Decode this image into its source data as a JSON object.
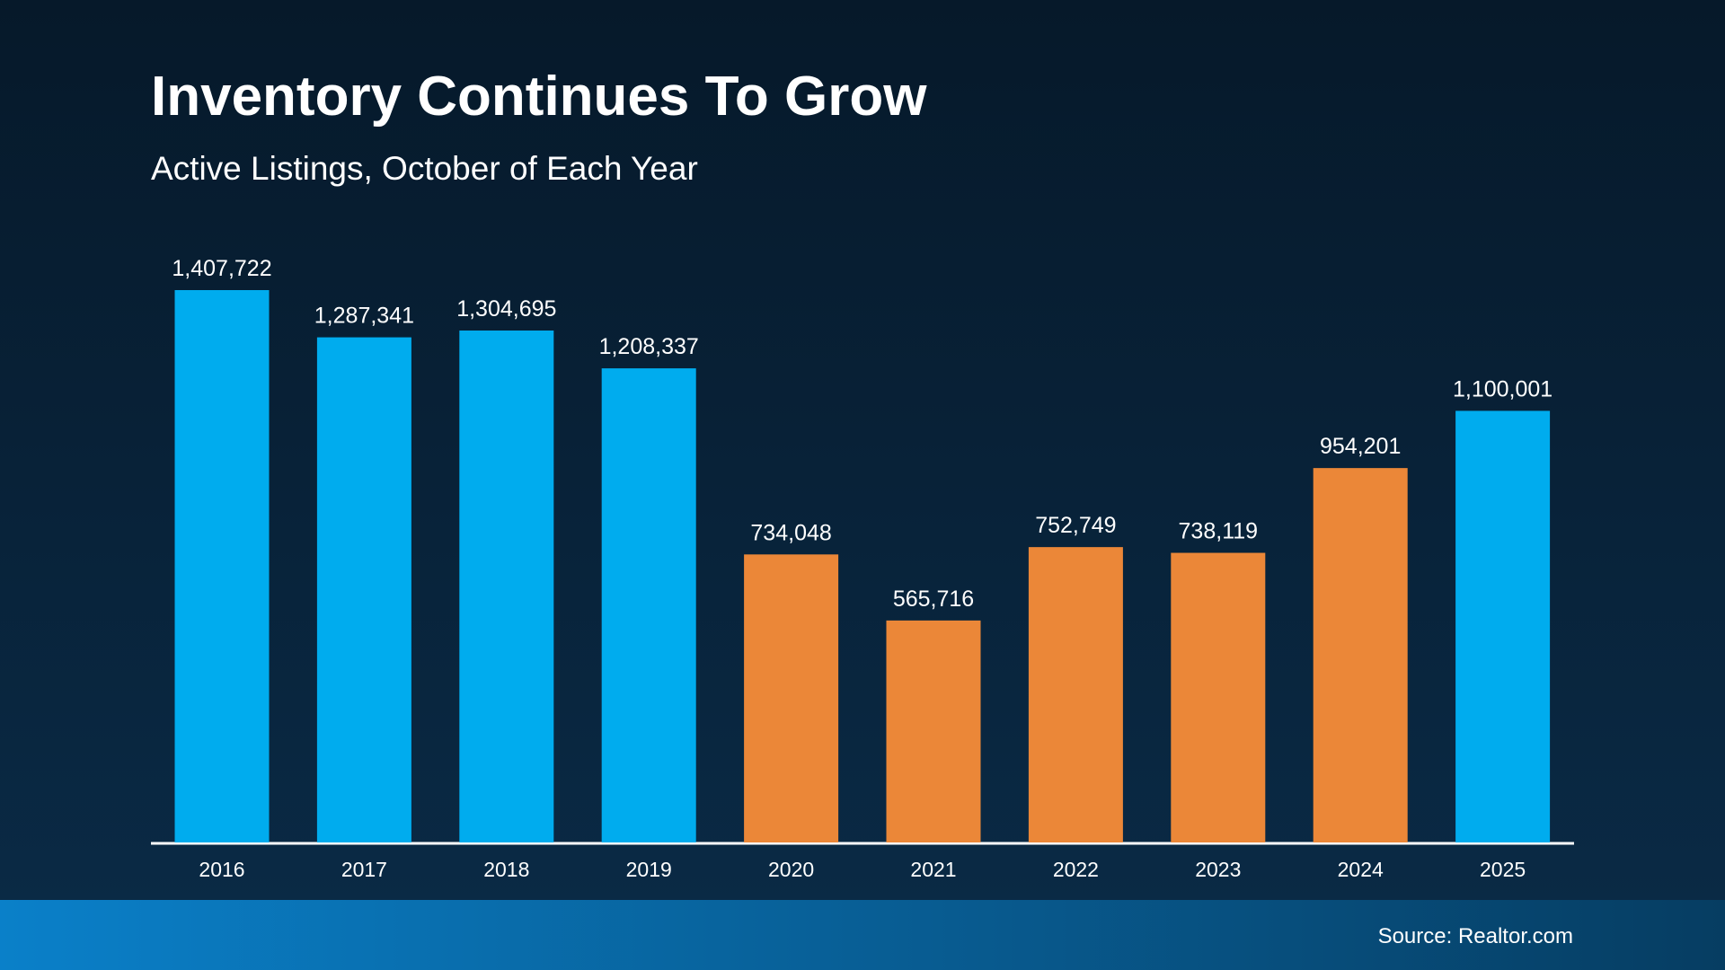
{
  "chart_data": {
    "type": "bar",
    "title": "Inventory Continues To Grow",
    "subtitle": "Active Listings, October of Each Year",
    "categories": [
      "2016",
      "2017",
      "2018",
      "2019",
      "2020",
      "2021",
      "2022",
      "2023",
      "2024",
      "2025"
    ],
    "values": [
      1407722,
      1287341,
      1304695,
      1208337,
      734048,
      565716,
      752749,
      738119,
      954201,
      1100001
    ],
    "value_labels": [
      "1,407,722",
      "1,287,341",
      "1,304,695",
      "1,208,337",
      "734,048",
      "565,716",
      "752,749",
      "738,119",
      "954,201",
      "1,100,001"
    ],
    "colors": [
      "#00acee",
      "#00acee",
      "#00acee",
      "#00acee",
      "#eb8738",
      "#eb8738",
      "#eb8738",
      "#eb8738",
      "#eb8738",
      "#00acee"
    ],
    "source": "Source: Realtor.com"
  }
}
